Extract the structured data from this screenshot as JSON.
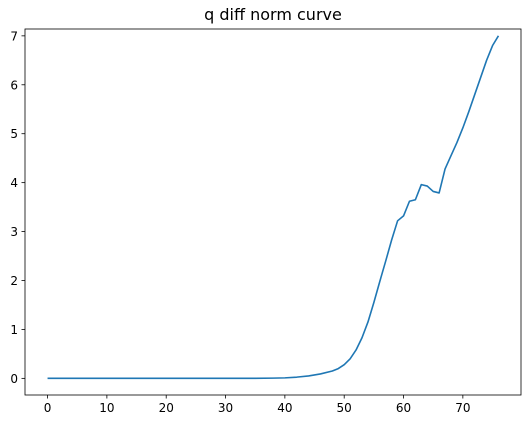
{
  "chart_data": {
    "type": "line",
    "title": "q diff norm curve",
    "xlabel": "",
    "ylabel": "",
    "xlim": [
      -3.8,
      79.8
    ],
    "ylim": [
      -0.34,
      7.14
    ],
    "xticks": [
      0,
      10,
      20,
      30,
      40,
      50,
      60,
      70
    ],
    "yticks": [
      0,
      1,
      2,
      3,
      4,
      5,
      6,
      7
    ],
    "grid": false,
    "series": [
      {
        "color": "#1f77b4",
        "x": [
          0,
          5,
          10,
          15,
          20,
          25,
          30,
          35,
          38,
          40,
          42,
          44,
          46,
          48,
          49,
          50,
          51,
          52,
          53,
          54,
          55,
          56,
          57,
          58,
          59,
          60,
          61,
          62,
          63,
          64,
          65,
          66,
          67,
          68,
          69,
          70,
          71,
          72,
          73,
          74,
          75,
          76
        ],
        "y": [
          0,
          0,
          0,
          0,
          0,
          0,
          0,
          0,
          0.005,
          0.01,
          0.025,
          0.05,
          0.09,
          0.15,
          0.2,
          0.28,
          0.4,
          0.58,
          0.83,
          1.15,
          1.55,
          1.98,
          2.4,
          2.83,
          3.22,
          3.32,
          3.62,
          3.65,
          3.96,
          3.93,
          3.82,
          3.79,
          4.28,
          4.55,
          4.82,
          5.12,
          5.45,
          5.8,
          6.15,
          6.5,
          6.8,
          7.0
        ]
      }
    ]
  }
}
